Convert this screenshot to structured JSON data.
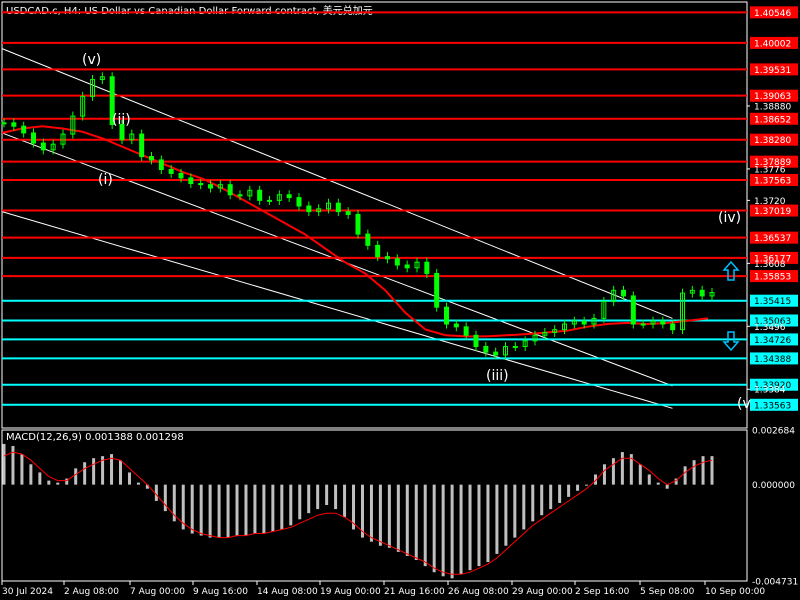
{
  "window": {
    "title": "USDCAD.c, H4:  US Dollar vs Canadian Dollar Forward contract, 美元兑加元",
    "indicator_label": "MACD(12,26,9) 0.001388 0.001298"
  },
  "colors": {
    "background": "#000000",
    "candle": "#00ff00",
    "grid_panel_border": "#ffffff",
    "resistance": "#ff0000",
    "support": "#00ffff",
    "ma": "#ff0000",
    "channel": "#ffffff",
    "macd_hist": "#c0c0c0",
    "macd_signal": "#ff0000",
    "arrow_up": "#00bfff",
    "arrow_down": "#00bfff"
  },
  "chart_data": {
    "type": "candlestick",
    "symbol": "USDCAD.c",
    "timeframe": "H4",
    "ylim": [
      1.3315,
      1.4073
    ],
    "x_tick_labels": [
      "30 Jul 2024",
      "2 Aug 08:00",
      "7 Aug 00:00",
      "9 Aug 16:00",
      "14 Aug 08:00",
      "19 Aug 00:00",
      "21 Aug 16:00",
      "26 Aug 08:00",
      "29 Aug 00:00",
      "2 Sep 16:00",
      "5 Sep 08:00",
      "10 Sep 00:00"
    ],
    "y_tick_labels": [
      1.3888,
      1.3776,
      1.372,
      1.3608,
      1.3496,
      1.3384
    ],
    "price_levels": [
      {
        "value": "1.40546",
        "kind": "resistance"
      },
      {
        "value": "1.40002",
        "kind": "resistance"
      },
      {
        "value": "1.39531",
        "kind": "resistance"
      },
      {
        "value": "1.39063",
        "kind": "resistance"
      },
      {
        "value": "1.38652",
        "kind": "resistance"
      },
      {
        "value": "1.38280",
        "kind": "resistance"
      },
      {
        "value": "1.37889",
        "kind": "resistance"
      },
      {
        "value": "1.37563",
        "kind": "resistance"
      },
      {
        "value": "1.37019",
        "kind": "resistance"
      },
      {
        "value": "1.36537",
        "kind": "resistance"
      },
      {
        "value": "1.36177",
        "kind": "resistance"
      },
      {
        "value": "1.35853",
        "kind": "resistance"
      },
      {
        "value": "1.35415",
        "kind": "support"
      },
      {
        "value": "1.35063",
        "kind": "support"
      },
      {
        "value": "1.34726",
        "kind": "support"
      },
      {
        "value": "1.34388",
        "kind": "support"
      },
      {
        "value": "1.33920",
        "kind": "support"
      },
      {
        "value": "1.33563",
        "kind": "support"
      }
    ],
    "wave_labels": [
      "(v)",
      "(ii)",
      "(i)",
      "(iii)",
      "(iv)",
      "(v"
    ],
    "close_path": [
      1.3858,
      1.3852,
      1.384,
      1.3822,
      1.381,
      1.382,
      1.3838,
      1.387,
      1.3905,
      1.3935,
      1.394,
      1.3855,
      1.3828,
      1.3838,
      1.3798,
      1.3792,
      1.3775,
      1.3768,
      1.376,
      1.375,
      1.3748,
      1.3742,
      1.3748,
      1.373,
      1.3728,
      1.3738,
      1.372,
      1.372,
      1.373,
      1.3725,
      1.371,
      1.37,
      1.3705,
      1.3715,
      1.37,
      1.3695,
      1.366,
      1.364,
      1.362,
      1.3616,
      1.3605,
      1.36,
      1.361,
      1.359,
      1.353,
      1.35,
      1.3495,
      1.348,
      1.346,
      1.345,
      1.3445,
      1.346,
      1.346,
      1.347,
      1.348,
      1.3485,
      1.349,
      1.35,
      1.3505,
      1.35,
      1.351,
      1.354,
      1.356,
      1.355,
      1.35,
      1.35,
      1.3505,
      1.35,
      1.349,
      1.3555,
      1.356,
      1.355,
      1.3556
    ],
    "ma_path": [
      1.384,
      1.3848,
      1.3852,
      1.3848,
      1.3842,
      1.383,
      1.3815,
      1.38,
      1.3785,
      1.377,
      1.3758,
      1.374,
      1.372,
      1.37,
      1.368,
      1.366,
      1.3635,
      1.361,
      1.359,
      1.356,
      1.352,
      1.349,
      1.348,
      1.3478,
      1.3478,
      1.348,
      1.3482,
      1.3485,
      1.3488,
      1.3495,
      1.35,
      1.3502,
      1.35,
      1.3502,
      1.3506,
      1.351
    ],
    "channel_lines": [
      {
        "from": [
          0,
          1.399
        ],
        "to": [
          1,
          1.351
        ]
      },
      {
        "from": [
          0,
          1.384
        ],
        "to": [
          1,
          1.339
        ]
      },
      {
        "from": [
          0,
          1.37
        ],
        "to": [
          1,
          1.335
        ]
      }
    ],
    "macd": {
      "ylim": [
        -0.004731,
        0.002684
      ],
      "tick_labels": [
        "0.002684",
        "0.000000",
        "-0.004731"
      ],
      "histogram": [
        0.002,
        0.0019,
        0.0015,
        0.001,
        0.0006,
        0.0002,
        0.0001,
        0.0003,
        0.0008,
        0.0011,
        0.0013,
        0.0014,
        0.0015,
        0.0012,
        0.0006,
        0.0001,
        -0.0002,
        -0.0008,
        -0.0013,
        -0.0018,
        -0.0022,
        -0.0024,
        -0.0025,
        -0.0026,
        -0.0026,
        -0.0026,
        -0.0025,
        -0.0025,
        -0.0024,
        -0.0024,
        -0.0023,
        -0.0022,
        -0.002,
        -0.0017,
        -0.0014,
        -0.0012,
        -0.001,
        -0.0012,
        -0.0016,
        -0.0022,
        -0.0026,
        -0.0028,
        -0.003,
        -0.0031,
        -0.0033,
        -0.0035,
        -0.0037,
        -0.004,
        -0.0043,
        -0.0045,
        -0.0046,
        -0.0044,
        -0.0042,
        -0.004,
        -0.0038,
        -0.0034,
        -0.003,
        -0.0026,
        -0.0022,
        -0.0018,
        -0.0015,
        -0.0012,
        -0.0009,
        -0.0006,
        -0.0003,
        0.0,
        0.0005,
        0.001,
        0.0013,
        0.0016,
        0.0015,
        0.001,
        0.0005,
        0.0001,
        -0.0002,
        0.0003,
        0.0009,
        0.0012,
        0.0014,
        0.0014
      ],
      "signal": [
        0.0014,
        0.0016,
        0.0015,
        0.0012,
        0.0008,
        0.0004,
        0.0002,
        0.0002,
        0.0005,
        0.0008,
        0.001,
        0.0012,
        0.0013,
        0.0012,
        0.0008,
        0.0004,
        0.0,
        -0.0005,
        -0.001,
        -0.0015,
        -0.0019,
        -0.0022,
        -0.0024,
        -0.0025,
        -0.0026,
        -0.0026,
        -0.0025,
        -0.0025,
        -0.0024,
        -0.0024,
        -0.0023,
        -0.0022,
        -0.0021,
        -0.0019,
        -0.0017,
        -0.0015,
        -0.0014,
        -0.0014,
        -0.0016,
        -0.0019,
        -0.0023,
        -0.0026,
        -0.0028,
        -0.003,
        -0.0032,
        -0.0034,
        -0.0036,
        -0.0038,
        -0.0041,
        -0.0043,
        -0.0044,
        -0.0044,
        -0.0043,
        -0.0041,
        -0.0039,
        -0.0036,
        -0.0032,
        -0.0028,
        -0.0024,
        -0.002,
        -0.0017,
        -0.0014,
        -0.0011,
        -0.0008,
        -0.0005,
        -0.0002,
        0.0002,
        0.0007,
        0.001,
        0.0013,
        0.0013,
        0.001,
        0.0007,
        0.0003,
        0.0,
        0.0002,
        0.0006,
        0.0009,
        0.0011,
        0.0012
      ]
    }
  }
}
